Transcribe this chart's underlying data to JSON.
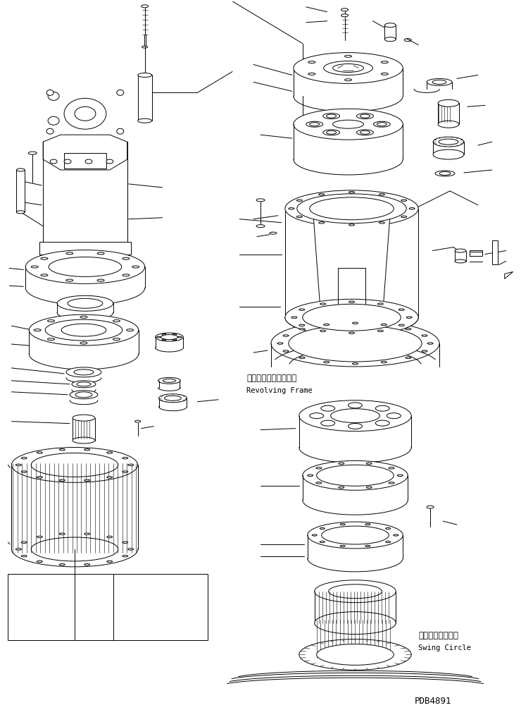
{
  "background_color": "#ffffff",
  "line_color": "#000000",
  "fig_width": 7.4,
  "fig_height": 10.07,
  "dpi": 100,
  "label_revolving_jp": "レボルビングフレーム",
  "label_revolving_en": "Revolving Frame",
  "label_swing_jp": "スイングサークル",
  "label_swing_en": "Swing Circle",
  "label_pdb": "PDB4891"
}
